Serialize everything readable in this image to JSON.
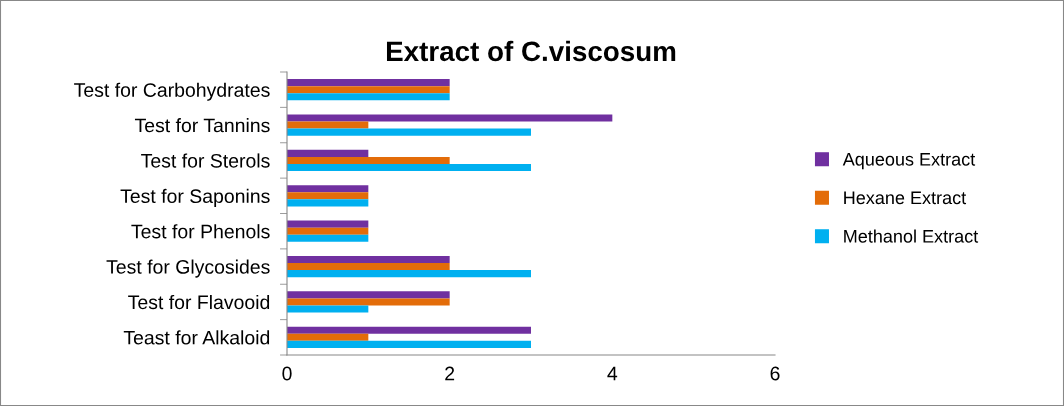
{
  "chart_data": {
    "type": "bar",
    "orientation": "horizontal",
    "title": "Extract of C.viscosum",
    "categories": [
      "Test for Carbohydrates",
      "Test for Tannins",
      "Test for Sterols",
      "Test for Saponins",
      "Test for Phenols",
      "Test for Glycosides",
      "Test for Flavooid",
      "Teast for Alkaloid"
    ],
    "series": [
      {
        "name": "Aqueous Extract",
        "color": "#7030a0",
        "values": [
          2,
          4,
          1,
          1,
          1,
          2,
          2,
          3
        ]
      },
      {
        "name": "Hexane Extract",
        "color": "#e36c09",
        "values": [
          2,
          1,
          2,
          1,
          1,
          2,
          2,
          1
        ]
      },
      {
        "name": "Methanol Extract",
        "color": "#00b0f0",
        "values": [
          2,
          3,
          3,
          1,
          1,
          3,
          1,
          3
        ]
      }
    ],
    "xlim": [
      0,
      6
    ],
    "xticks": [
      0,
      2,
      4,
      6
    ],
    "grid": false,
    "legend": "right"
  }
}
